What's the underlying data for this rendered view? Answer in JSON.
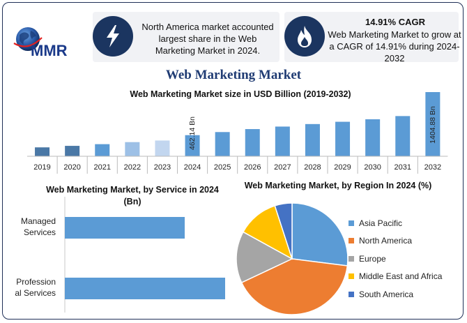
{
  "logo": {
    "text": "MMR"
  },
  "info": [
    {
      "icon": "lightning-bolt-icon",
      "text": "North America market accounted largest share in the Web Marketing Market in 2024."
    },
    {
      "icon": "flame-icon",
      "heading": "14.91% CAGR",
      "text": "Web Marketing Market to grow at a CAGR of 14.91% during 2024-2032"
    }
  ],
  "main_title": "Web Marketing Market",
  "colors": {
    "dark_navy": "#1b3560",
    "bar_blue": "#5b9bd5",
    "bar_dark": "#4a78a6",
    "bar_light": "#9dc0e6",
    "bar_lighter": "#c2d6ef",
    "title_blue": "#1f3b73"
  },
  "chart_data": [
    {
      "type": "bar",
      "title": "Web Marketing Market size in USD Billion (2019-2032)",
      "categories": [
        "2019",
        "2020",
        "2021",
        "2022",
        "2023",
        "2024",
        "2025",
        "2026",
        "2027",
        "2028",
        "2029",
        "2030",
        "2031",
        "2032"
      ],
      "values": [
        195,
        228,
        265,
        310,
        345,
        462.14,
        530,
        595,
        650,
        705,
        755,
        810,
        880,
        1404.88
      ],
      "annotations": [
        {
          "category": "2024",
          "label": "462.14 Bn"
        },
        {
          "category": "2032",
          "label": "1404.88 Bn"
        }
      ]
    },
    {
      "type": "bar",
      "orientation": "horizontal",
      "title": "Web Marketing Market, by Service in 2024 (Bn)",
      "categories": [
        "Managed Services",
        "Professional Services"
      ],
      "category_lines": [
        [
          "Managed",
          "Services"
        ],
        [
          "Profession",
          "al Services"
        ]
      ],
      "values": [
        172,
        230
      ]
    },
    {
      "type": "pie",
      "title": "Web Marketing Market, by Region In 2024 (%)",
      "categories": [
        "Asia Pacific",
        "North America",
        "Europe",
        "Middle East and Africa",
        "South America"
      ],
      "values": [
        27,
        41,
        15,
        12,
        5
      ],
      "colors": [
        "#5b9bd5",
        "#ed7d31",
        "#a5a5a5",
        "#ffc000",
        "#4472c4"
      ],
      "legend": "right"
    }
  ]
}
